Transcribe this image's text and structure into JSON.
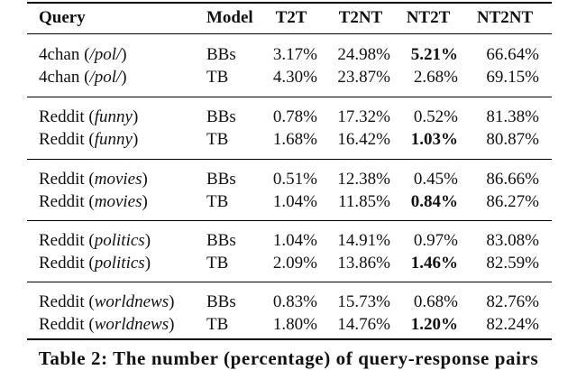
{
  "table": {
    "header": [
      "Query",
      "Model",
      "T2T",
      "T2NT",
      "NT2T",
      "NT2NT"
    ],
    "groups": [
      {
        "rows": [
          {
            "query": [
              "4chan (",
              "/pol/",
              ")"
            ],
            "model": "BBs",
            "values": [
              "3.17%",
              "24.98%",
              "5.21%",
              "66.64%"
            ],
            "bold": [
              2
            ]
          },
          {
            "query": [
              "4chan (",
              "/pol/",
              ")"
            ],
            "model": "TB",
            "values": [
              "4.30%",
              "23.87%",
              "2.68%",
              "69.15%"
            ],
            "bold": []
          }
        ]
      },
      {
        "rows": [
          {
            "query": [
              "Reddit (",
              "funny",
              ")"
            ],
            "model": "BBs",
            "values": [
              "0.78%",
              "17.32%",
              "0.52%",
              "81.38%"
            ],
            "bold": []
          },
          {
            "query": [
              "Reddit (",
              "funny",
              ")"
            ],
            "model": "TB",
            "values": [
              "1.68%",
              "16.42%",
              "1.03%",
              "80.87%"
            ],
            "bold": [
              2
            ]
          }
        ]
      },
      {
        "rows": [
          {
            "query": [
              "Reddit (",
              "movies",
              ")"
            ],
            "model": "BBs",
            "values": [
              "0.51%",
              "12.38%",
              "0.45%",
              "86.66%"
            ],
            "bold": []
          },
          {
            "query": [
              "Reddit (",
              "movies",
              ")"
            ],
            "model": "TB",
            "values": [
              "1.04%",
              "11.85%",
              "0.84%",
              "86.27%"
            ],
            "bold": [
              2
            ]
          }
        ]
      },
      {
        "rows": [
          {
            "query": [
              "Reddit (",
              "politics",
              ")"
            ],
            "model": "BBs",
            "values": [
              "1.04%",
              "14.91%",
              "0.97%",
              "83.08%"
            ],
            "bold": []
          },
          {
            "query": [
              "Reddit (",
              "politics",
              ")"
            ],
            "model": "TB",
            "values": [
              "2.09%",
              "13.86%",
              "1.46%",
              "82.59%"
            ],
            "bold": [
              2
            ]
          }
        ]
      },
      {
        "rows": [
          {
            "query": [
              "Reddit (",
              "worldnews",
              ")"
            ],
            "model": "BBs",
            "values": [
              "0.83%",
              "15.73%",
              "0.68%",
              "82.76%"
            ],
            "bold": []
          },
          {
            "query": [
              "Reddit (",
              "worldnews",
              ")"
            ],
            "model": "TB",
            "values": [
              "1.80%",
              "14.76%",
              "1.20%",
              "82.24%"
            ],
            "bold": [
              2
            ]
          }
        ]
      }
    ]
  },
  "caption": "Table 2: The number (percentage) of query-response pairs"
}
